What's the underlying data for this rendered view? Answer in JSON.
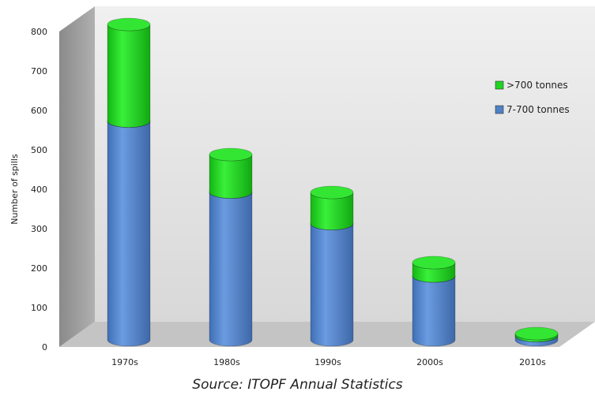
{
  "chart_data": {
    "type": "bar",
    "stacked": true,
    "style": "3d-cylinder",
    "categories": [
      "1970s",
      "1980s",
      "1990s",
      "2000s",
      "2010s"
    ],
    "series": [
      {
        "name": "7-700 tonnes",
        "values": [
          555,
          375,
          295,
          162,
          11
        ],
        "color": "#4f81c7"
      },
      {
        "name": ">700 tonnes",
        "values": [
          245,
          95,
          79,
          34,
          5
        ],
        "color": "#1fd11f"
      }
    ],
    "ylabel": "Number of spills",
    "ylim": [
      0,
      800
    ],
    "yticks": [
      "0",
      "100",
      "200",
      "300",
      "400",
      "500",
      "600",
      "700",
      "800"
    ],
    "legend_placement": "right",
    "grid": false
  },
  "caption": "Source: ITOPF Annual Statistics"
}
